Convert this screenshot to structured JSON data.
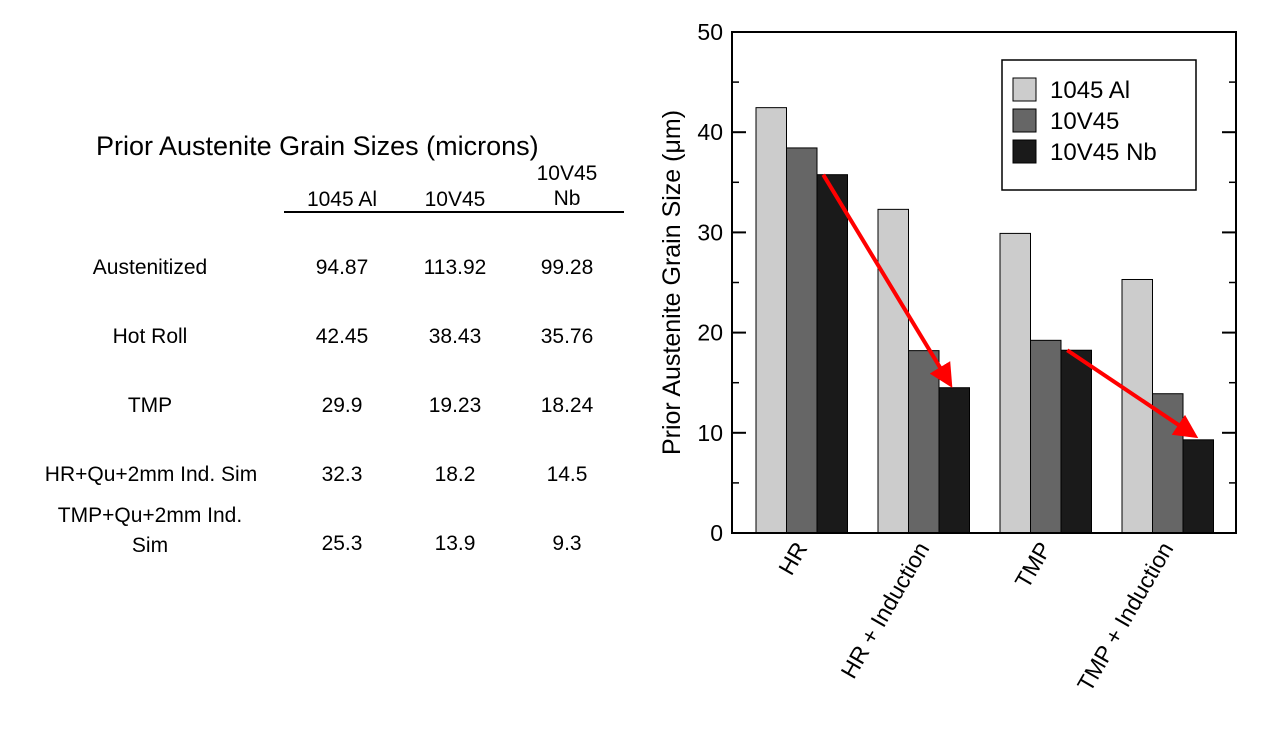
{
  "table": {
    "title": "Prior Austenite Grain Sizes (microns)",
    "columns": [
      {
        "line1": "1045 Al",
        "line2": ""
      },
      {
        "line1": "10V45",
        "line2": ""
      },
      {
        "line1": "10V45",
        "line2": "Nb"
      }
    ],
    "rows": [
      {
        "label_line1": "Austenitized",
        "label_line2": "",
        "values": [
          "94.87",
          "113.92",
          "99.28"
        ]
      },
      {
        "label_line1": "Hot Roll",
        "label_line2": "",
        "values": [
          "42.45",
          "38.43",
          "35.76"
        ]
      },
      {
        "label_line1": "TMP",
        "label_line2": "",
        "values": [
          "29.9",
          "19.23",
          "18.24"
        ]
      },
      {
        "label_line1": "HR+Qu+2mm Ind. Sim",
        "label_line2": "",
        "values": [
          "32.3",
          "18.2",
          "14.5"
        ]
      },
      {
        "label_line1": "TMP+Qu+2mm Ind.",
        "label_line2": "Sim",
        "values": [
          "25.3",
          "13.9",
          "9.3"
        ]
      }
    ]
  },
  "chart_data": {
    "type": "bar",
    "title": "",
    "xlabel": "",
    "ylabel": "Prior Austenite Grain Size (μm)",
    "ylim": [
      0,
      50
    ],
    "yticks": [
      0,
      10,
      20,
      30,
      40,
      50
    ],
    "categories": [
      "HR",
      "HR + Induction",
      "TMP",
      "TMP + Induction"
    ],
    "series": [
      {
        "name": "1045 Al",
        "color": "#cccccc",
        "values": [
          42.45,
          32.3,
          29.9,
          25.3
        ]
      },
      {
        "name": "10V45",
        "color": "#666666",
        "values": [
          38.43,
          18.2,
          19.23,
          13.9
        ]
      },
      {
        "name": "10V45 Nb",
        "color": "#1a1a1a",
        "values": [
          35.76,
          14.5,
          18.24,
          9.3
        ]
      }
    ],
    "legend_position": "top-right",
    "annotations": [
      {
        "type": "arrow",
        "color": "#ff0000",
        "from": {
          "category": "HR",
          "y": 35.76
        },
        "to": {
          "category": "HR + Induction",
          "y": 14.5
        }
      },
      {
        "type": "arrow",
        "color": "#ff0000",
        "from": {
          "category": "TMP",
          "y": 18.24
        },
        "to": {
          "category": "TMP + Induction",
          "y": 9.3
        }
      }
    ]
  }
}
